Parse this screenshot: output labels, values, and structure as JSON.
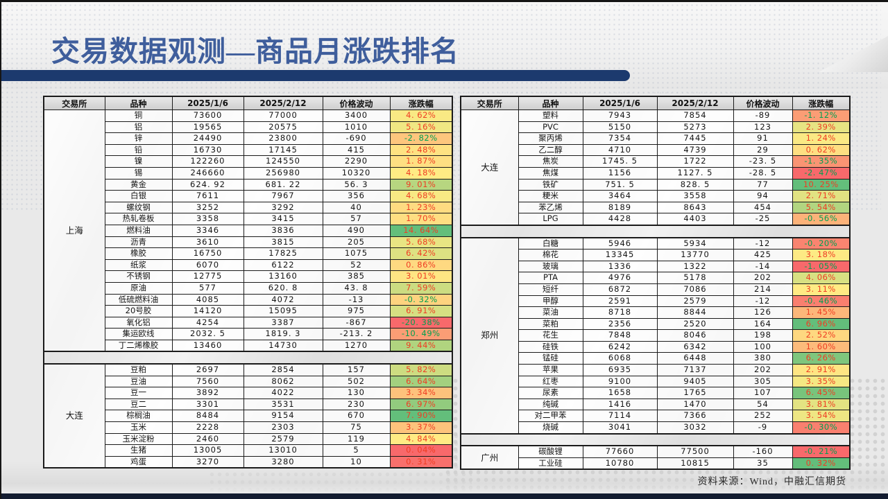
{
  "title": "交易数据观测—商品月涨跌排名",
  "source_note": "资料来源：Wind，中融汇信期货",
  "colors": {
    "title_text": "#3f5e9c",
    "title_bar": "#1c3a6e",
    "positive_text": "#ef3d24",
    "negative_text": "#00a050",
    "footer_bar": "#131c30"
  },
  "tables": [
    {
      "id": "t-left",
      "columns": [
        "交易所",
        "品种",
        "2025/1/6",
        "2025/2/12",
        "价格波动",
        "涨跌幅"
      ],
      "sections": [
        {
          "exchange": "上海",
          "rows": [
            [
              "铜",
              "73600",
              "77000",
              "3400",
              "4. 62%",
              "#F9E984"
            ],
            [
              "铝",
              "19565",
              "20575",
              "1010",
              "5. 16%",
              "#F0E783"
            ],
            [
              "锌",
              "24490",
              "23800",
              "-690",
              "-2. 82%",
              "#FDC67D"
            ],
            [
              "铅",
              "16730",
              "17145",
              "415",
              "2. 48%",
              "#FEE282"
            ],
            [
              "镍",
              "122260",
              "124550",
              "2290",
              "1. 87%",
              "#FEDF82"
            ],
            [
              "锡",
              "246660",
              "256980",
              "10320",
              "4. 18%",
              "#FFEB84"
            ],
            [
              "黄金",
              "624. 92",
              "681. 22",
              "56. 3",
              "9. 01%",
              "#B7D680"
            ],
            [
              "白银",
              "7611",
              "7967",
              "356",
              "4. 68%",
              "#F8E984"
            ],
            [
              "螺纹钢",
              "3252",
              "3292",
              "40",
              "1. 23%",
              "#FEDB81"
            ],
            [
              "热轧卷板",
              "3358",
              "3415",
              "57",
              "1. 70%",
              "#FEDE82"
            ],
            [
              "燃料油",
              "3346",
              "3836",
              "490",
              "14. 64%",
              "#63BE7B"
            ],
            [
              "沥青",
              "3610",
              "3815",
              "205",
              "5. 68%",
              "#E8E583"
            ],
            [
              "橡胶",
              "16750",
              "17825",
              "1075",
              "6. 42%",
              "#DDE182"
            ],
            [
              "纸浆",
              "6070",
              "6122",
              "52",
              "0. 86%",
              "#FED981"
            ],
            [
              "不锈钢",
              "12775",
              "13160",
              "385",
              "3. 01%",
              "#FEE583"
            ],
            [
              "原油",
              "577",
              "620. 8",
              "43. 8",
              "7. 59%",
              "#CCDC81"
            ],
            [
              "低硫燃料油",
              "4085",
              "4072",
              "-13",
              "-0. 32%",
              "#FED37F"
            ],
            [
              "20号胶",
              "14120",
              "15095",
              "975",
              "6. 91%",
              "#D6DF82"
            ],
            [
              "氧化铝",
              "4254",
              "3387",
              "-867",
              "-20. 38%",
              "#F8696B"
            ],
            [
              "集运欧线",
              "2032. 5",
              "1819. 3",
              "-213. 2",
              "-10. 49%",
              "#FB9D75"
            ],
            [
              "丁二烯橡胶",
              "13460",
              "14730",
              "1270",
              "9. 44%",
              "#B0D47F"
            ]
          ]
        },
        {
          "exchange": "大连",
          "rows": [
            [
              "豆粕",
              "2697",
              "2854",
              "157",
              "5. 82%",
              "#CDDC81"
            ],
            [
              "豆油",
              "7560",
              "8062",
              "502",
              "6. 64%",
              "#A3D07F"
            ],
            [
              "豆一",
              "3892",
              "4022",
              "130",
              "3. 34%",
              "#FDC27C"
            ],
            [
              "豆二",
              "3301",
              "3531",
              "230",
              "6. 97%",
              "#92CB7E"
            ],
            [
              "棕榈油",
              "8484",
              "9154",
              "670",
              "7. 90%",
              "#63BE7B"
            ],
            [
              "玉米",
              "2228",
              "2303",
              "75",
              "3. 37%",
              "#FDC37C"
            ],
            [
              "玉米淀粉",
              "2460",
              "2579",
              "119",
              "4. 84%",
              "#FFEB84"
            ],
            [
              "生猪",
              "13005",
              "13010",
              "5",
              "0. 04%",
              "#F8696B"
            ],
            [
              "鸡蛋",
              "3270",
              "3280",
              "10",
              "0. 31%",
              "#F8706C"
            ]
          ]
        }
      ]
    },
    {
      "id": "t-right",
      "columns": [
        "交易所",
        "品种",
        "2025/1/6",
        "2025/2/12",
        "价格波动",
        "涨跌幅"
      ],
      "sections": [
        {
          "exchange": "大连",
          "rows": [
            [
              "塑料",
              "7943",
              "7854",
              "-89",
              "-1. 12%",
              "#FB9D75"
            ],
            [
              "PVC",
              "5150",
              "5273",
              "123",
              "2. 39%",
              "#E7E483"
            ],
            [
              "聚丙烯",
              "7354",
              "7445",
              "91",
              "1. 24%",
              "#FAE984"
            ],
            [
              "乙二醇",
              "4710",
              "4739",
              "29",
              "0. 62%",
              "#FEDF82"
            ],
            [
              "焦炭",
              "1745. 5",
              "1722",
              "-23. 5",
              "-1. 35%",
              "#FA9473"
            ],
            [
              "焦煤",
              "1156",
              "1127. 5",
              "-28. 5",
              "-2. 47%",
              "#F8696B"
            ],
            [
              "铁矿",
              "751. 5",
              "828. 5",
              "77",
              "10. 25%",
              "#63BE7B"
            ],
            [
              "粳米",
              "3464",
              "3558",
              "94",
              "2. 71%",
              "#E1E282"
            ],
            [
              "苯乙烯",
              "8189",
              "8643",
              "454",
              "5. 54%",
              "#B2D580"
            ],
            [
              "LPG",
              "4428",
              "4403",
              "-25",
              "-0. 56%",
              "#FCB279"
            ]
          ]
        },
        {
          "exchange": "郑州",
          "rows": [
            [
              "白糖",
              "5946",
              "5934",
              "-12",
              "-0. 20%",
              "#F98470"
            ],
            [
              "棉花",
              "13345",
              "13770",
              "425",
              "3. 18%",
              "#FDEA84"
            ],
            [
              "玻璃",
              "1336",
              "1322",
              "-14",
              "-1. 05%",
              "#F8696B"
            ],
            [
              "PTA",
              "4976",
              "5178",
              "202",
              "4. 06%",
              "#D8E082"
            ],
            [
              "短纤",
              "6872",
              "7086",
              "214",
              "3. 11%",
              "#FFEB84"
            ],
            [
              "甲醇",
              "2591",
              "2579",
              "-12",
              "-0. 46%",
              "#F97F6F"
            ],
            [
              "菜油",
              "8718",
              "8844",
              "126",
              "1. 45%",
              "#FCB77A"
            ],
            [
              "菜粕",
              "2356",
              "2520",
              "164",
              "6. 96%",
              "#63BE7B"
            ],
            [
              "花生",
              "7848",
              "8046",
              "198",
              "2. 52%",
              "#FED880"
            ],
            [
              "硅铁",
              "6242",
              "6342",
              "100",
              "1. 60%",
              "#FCBB7B"
            ],
            [
              "锰硅",
              "6068",
              "6448",
              "380",
              "6. 26%",
              "#7FC67D"
            ],
            [
              "苹果",
              "6935",
              "7137",
              "202",
              "2. 91%",
              "#FEE583"
            ],
            [
              "红枣",
              "9100",
              "9405",
              "305",
              "3. 35%",
              "#F5E883"
            ],
            [
              "尿素",
              "1658",
              "1765",
              "107",
              "6. 45%",
              "#78C47C"
            ],
            [
              "纯碱",
              "1416",
              "1470",
              "54",
              "3. 81%",
              "#E3E382"
            ],
            [
              "对二甲苯",
              "7114",
              "7366",
              "252",
              "3. 54%",
              "#EEE683"
            ],
            [
              "烧碱",
              "3041",
              "3032",
              "-9",
              "-0. 30%",
              "#F9806F"
            ]
          ]
        },
        {
          "exchange": "广州",
          "rows": [
            [
              "碳酸锂",
              "77660",
              "77500",
              "-160",
              "-0. 21%",
              "#F8696B"
            ],
            [
              "工业硅",
              "10780",
              "10815",
              "35",
              "0. 32%",
              "#63BE7B"
            ]
          ]
        }
      ]
    }
  ]
}
